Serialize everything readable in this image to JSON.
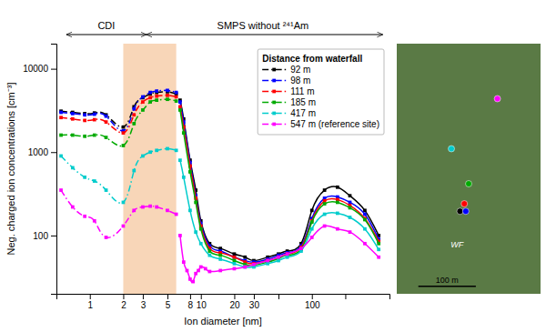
{
  "chart_data": {
    "type": "line",
    "xlabel": "Ion diameter [nm]",
    "ylabel": "Neg. charged ion concentrations [cm⁻³]",
    "annotations": [
      "CDI",
      "SMPS without ²⁴¹Am",
      "WF",
      "100 m"
    ],
    "legend_title": "Distance from waterfall",
    "legend": "upper right",
    "log": true,
    "grid": false,
    "xlim": [
      0.5,
      500
    ],
    "ylim": [
      20,
      20000
    ],
    "xticks": [
      1,
      2,
      3,
      5,
      8,
      10,
      20,
      30,
      {
        "value": 50,
        "label": null
      },
      100,
      {
        "value": 200,
        "label": null
      }
    ],
    "yticks": [
      100,
      1000,
      10000
    ],
    "shaded_region": {
      "x": [
        2.0,
        6.0
      ],
      "color": "#f5c49a"
    },
    "series": [
      {
        "name": "92 m",
        "color": "#000000",
        "marker": "square",
        "parts": [
          {
            "line_style": "dashdot",
            "x": [
              0.55,
              0.7,
              0.9,
              1.1,
              1.4,
              2.0,
              2.5,
              3.0,
              3.5,
              4.0,
              5.0,
              6.0
            ],
            "values": [
              3100,
              3000,
              2900,
              2950,
              2800,
              2000,
              3500,
              4500,
              5000,
              5200,
              5300,
              5000
            ]
          },
          {
            "line_style": "solid",
            "x": [
              6.5,
              7,
              8,
              9,
              10,
              12,
              15,
              20,
              25,
              30,
              40,
              50,
              60,
              80,
              100,
              130,
              170,
              220,
              300,
              400
            ],
            "values": [
              4200,
              2500,
              800,
              350,
              150,
              80,
              70,
              60,
              55,
              50,
              55,
              60,
              65,
              80,
              200,
              350,
              380,
              300,
              200,
              100
            ]
          }
        ]
      },
      {
        "name": "98 m",
        "color": "#0000ff",
        "marker": "square",
        "parts": [
          {
            "line_style": "dashdot",
            "x": [
              0.55,
              0.7,
              0.9,
              1.1,
              1.4,
              2.0,
              2.5,
              3.0,
              3.5,
              4.0,
              5.0,
              6.0
            ],
            "values": [
              3000,
              2900,
              2800,
              2850,
              2700,
              1800,
              3300,
              4600,
              5200,
              5400,
              5500,
              5200
            ]
          },
          {
            "line_style": "solid",
            "x": [
              6.5,
              7,
              8,
              9,
              10,
              12,
              15,
              20,
              25,
              30,
              40,
              50,
              60,
              80,
              100,
              130,
              170,
              220,
              300,
              400
            ],
            "values": [
              4000,
              2300,
              750,
              300,
              140,
              75,
              65,
              55,
              50,
              48,
              52,
              58,
              62,
              75,
              160,
              280,
              290,
              250,
              180,
              90
            ]
          }
        ]
      },
      {
        "name": "111 m",
        "color": "#ff0000",
        "marker": "square",
        "parts": [
          {
            "line_style": "dashdot",
            "x": [
              0.55,
              0.7,
              0.9,
              1.1,
              1.4,
              2.0,
              2.5,
              3.0,
              3.5,
              4.0,
              5.0,
              6.0
            ],
            "values": [
              2600,
              2500,
              2400,
              2450,
              2300,
              1700,
              2800,
              4000,
              4500,
              4700,
              4800,
              4600
            ]
          },
          {
            "line_style": "solid",
            "x": [
              6.5,
              7,
              8,
              9,
              10,
              12,
              15,
              20,
              25,
              30,
              40,
              50,
              60,
              80,
              100,
              130,
              170,
              220,
              300,
              400
            ],
            "values": [
              3500,
              2000,
              680,
              280,
              130,
              70,
              62,
              55,
              48,
              46,
              50,
              55,
              60,
              72,
              150,
              260,
              270,
              230,
              160,
              85
            ]
          }
        ]
      },
      {
        "name": "185 m",
        "color": "#00aa00",
        "marker": "square",
        "parts": [
          {
            "line_style": "dashdot",
            "x": [
              0.55,
              0.7,
              0.9,
              1.1,
              1.4,
              2.0,
              2.5,
              3.0,
              3.5,
              4.0,
              5.0,
              6.0
            ],
            "values": [
              1600,
              1600,
              1550,
              1600,
              1500,
              1200,
              2200,
              3200,
              4000,
              4200,
              4300,
              4100
            ]
          },
          {
            "line_style": "solid",
            "x": [
              6.5,
              7,
              8,
              9,
              10,
              12,
              15,
              20,
              25,
              30,
              40,
              50,
              60,
              80,
              100,
              130,
              170,
              220,
              300,
              400
            ],
            "values": [
              3200,
              1700,
              580,
              250,
              120,
              65,
              58,
              50,
              45,
              44,
              48,
              53,
              58,
              68,
              145,
              240,
              250,
              215,
              155,
              80
            ]
          }
        ]
      },
      {
        "name": "417 m",
        "color": "#00cccc",
        "marker": "square",
        "parts": [
          {
            "line_style": "dashdot",
            "x": [
              0.55,
              0.7,
              0.9,
              1.1,
              1.4,
              2.0,
              2.5,
              3.0,
              3.5,
              4.0,
              5.0,
              6.0
            ],
            "values": [
              900,
              650,
              500,
              450,
              350,
              250,
              600,
              900,
              1000,
              1050,
              1100,
              1050
            ]
          },
          {
            "line_style": "solid",
            "x": [
              6.5,
              7,
              8,
              9,
              10,
              12,
              15,
              20,
              25,
              30,
              40,
              50,
              60,
              80,
              100,
              130,
              170,
              220,
              300,
              400
            ],
            "values": [
              800,
              500,
              200,
              110,
              80,
              58,
              52,
              46,
              42,
              42,
              46,
              50,
              55,
              65,
              120,
              180,
              185,
              165,
              120,
              68
            ]
          }
        ]
      },
      {
        "name": "547 m (reference site)",
        "color": "#ff00ff",
        "marker": "square",
        "parts": [
          {
            "line_style": "dashdot",
            "x": [
              0.55,
              0.7,
              0.9,
              1.1,
              1.4,
              2.0,
              2.5,
              3.0,
              3.5,
              4.0,
              5.0,
              6.0
            ],
            "values": [
              350,
              220,
              170,
              150,
              95,
              130,
              200,
              220,
              225,
              220,
              200,
              180
            ]
          },
          {
            "line_style": "solid",
            "x": [
              6.5,
              7,
              7.5,
              8,
              8.5,
              9,
              9.5,
              10,
              11,
              12,
              15,
              20,
              25,
              30,
              40,
              50,
              60,
              80,
              100,
              130,
              170,
              220,
              300,
              400
            ],
            "values": [
              100,
              48,
              38,
              30,
              28,
              35,
              38,
              42,
              40,
              37,
              38,
              40,
              42,
              45,
              50,
              55,
              60,
              70,
              95,
              130,
              120,
              110,
              80,
              55
            ]
          }
        ]
      }
    ]
  }
}
